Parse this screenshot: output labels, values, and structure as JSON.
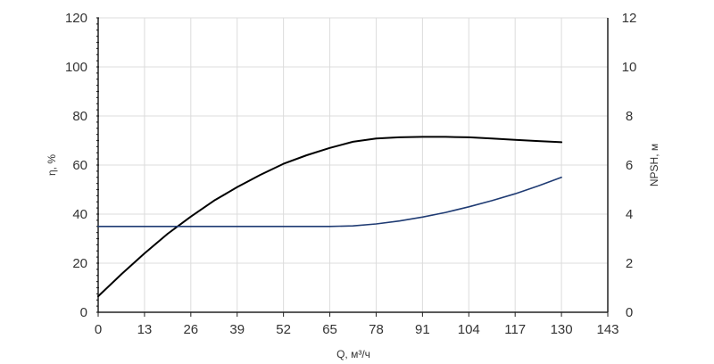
{
  "chart_data": {
    "type": "line",
    "title": "",
    "xlabel": "Q, м³/ч",
    "ylabel_left": "η, %",
    "ylabel_right": "NPSH, м",
    "xlim": [
      0,
      143
    ],
    "ylim_left": [
      0,
      120
    ],
    "ylim_right": [
      0,
      12
    ],
    "x_ticks": [
      0,
      13,
      26,
      39,
      52,
      65,
      78,
      91,
      104,
      117,
      130,
      143
    ],
    "y_left_ticks": [
      0,
      20,
      40,
      60,
      80,
      100,
      120
    ],
    "y_right_ticks": [
      0,
      2,
      4,
      6,
      8,
      10,
      12
    ],
    "grid": true,
    "legend": "none",
    "series": [
      {
        "axis": "left",
        "color": "#000000",
        "x": [
          0,
          6.5,
          13,
          19.5,
          26,
          32.5,
          39,
          45.5,
          52,
          58.5,
          65,
          71.5,
          78,
          84.5,
          91,
          97.5,
          104,
          110.5,
          117,
          123.5,
          130
        ],
        "values": [
          6.5,
          15.5,
          24,
          32,
          39,
          45.5,
          51,
          56,
          60.5,
          64,
          67,
          69.5,
          70.8,
          71.3,
          71.5,
          71.5,
          71.3,
          70.8,
          70.3,
          69.8,
          69.3
        ]
      },
      {
        "axis": "right",
        "color": "#1f3b73",
        "x": [
          0,
          13,
          26,
          39,
          52,
          65,
          71.5,
          78,
          84.5,
          91,
          97.5,
          104,
          110.5,
          117,
          123.5,
          130
        ],
        "values": [
          3.5,
          3.5,
          3.5,
          3.5,
          3.5,
          3.5,
          3.52,
          3.6,
          3.72,
          3.88,
          4.07,
          4.3,
          4.55,
          4.83,
          5.15,
          5.5
        ]
      }
    ]
  }
}
